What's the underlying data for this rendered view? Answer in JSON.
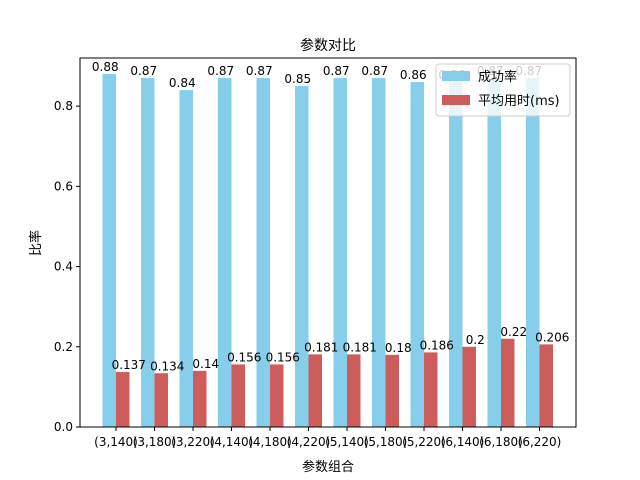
{
  "chart_data": {
    "type": "bar",
    "title": "参数对比",
    "xlabel": "参数组合",
    "ylabel": "比率",
    "categories": [
      "(3,140)",
      "(3,180)",
      "(3,220)",
      "(4,140)",
      "(4,180)",
      "(4,220)",
      "(5,140)",
      "(5,180)",
      "(5,220)",
      "(6,140)",
      "(6,180)",
      "(6,220)"
    ],
    "series": [
      {
        "name": "成功率",
        "color": "#87ceeb",
        "values": [
          0.88,
          0.87,
          0.84,
          0.87,
          0.87,
          0.85,
          0.87,
          0.87,
          0.86,
          0.86,
          0.87,
          0.87
        ],
        "labels": [
          "0.88",
          "0.87",
          "0.84",
          "0.87",
          "0.87",
          "0.85",
          "0.87",
          "0.87",
          "0.86",
          "0.86",
          "0.87",
          "0.87"
        ]
      },
      {
        "name": "平均用时(ms)",
        "color": "#cd5c5c",
        "values": [
          0.137,
          0.134,
          0.14,
          0.156,
          0.156,
          0.181,
          0.181,
          0.18,
          0.186,
          0.2,
          0.22,
          0.206
        ],
        "labels": [
          "0.137",
          "0.134",
          "0.14",
          "0.156",
          "0.156",
          "0.181",
          "0.181",
          "0.18",
          "0.186",
          "0.2",
          "0.22",
          "0.206"
        ]
      }
    ],
    "ylim": [
      0,
      0.92
    ],
    "yticks": [
      "0.0",
      "0.2",
      "0.4",
      "0.6",
      "0.8"
    ],
    "legend": "top-right",
    "grid": false
  }
}
